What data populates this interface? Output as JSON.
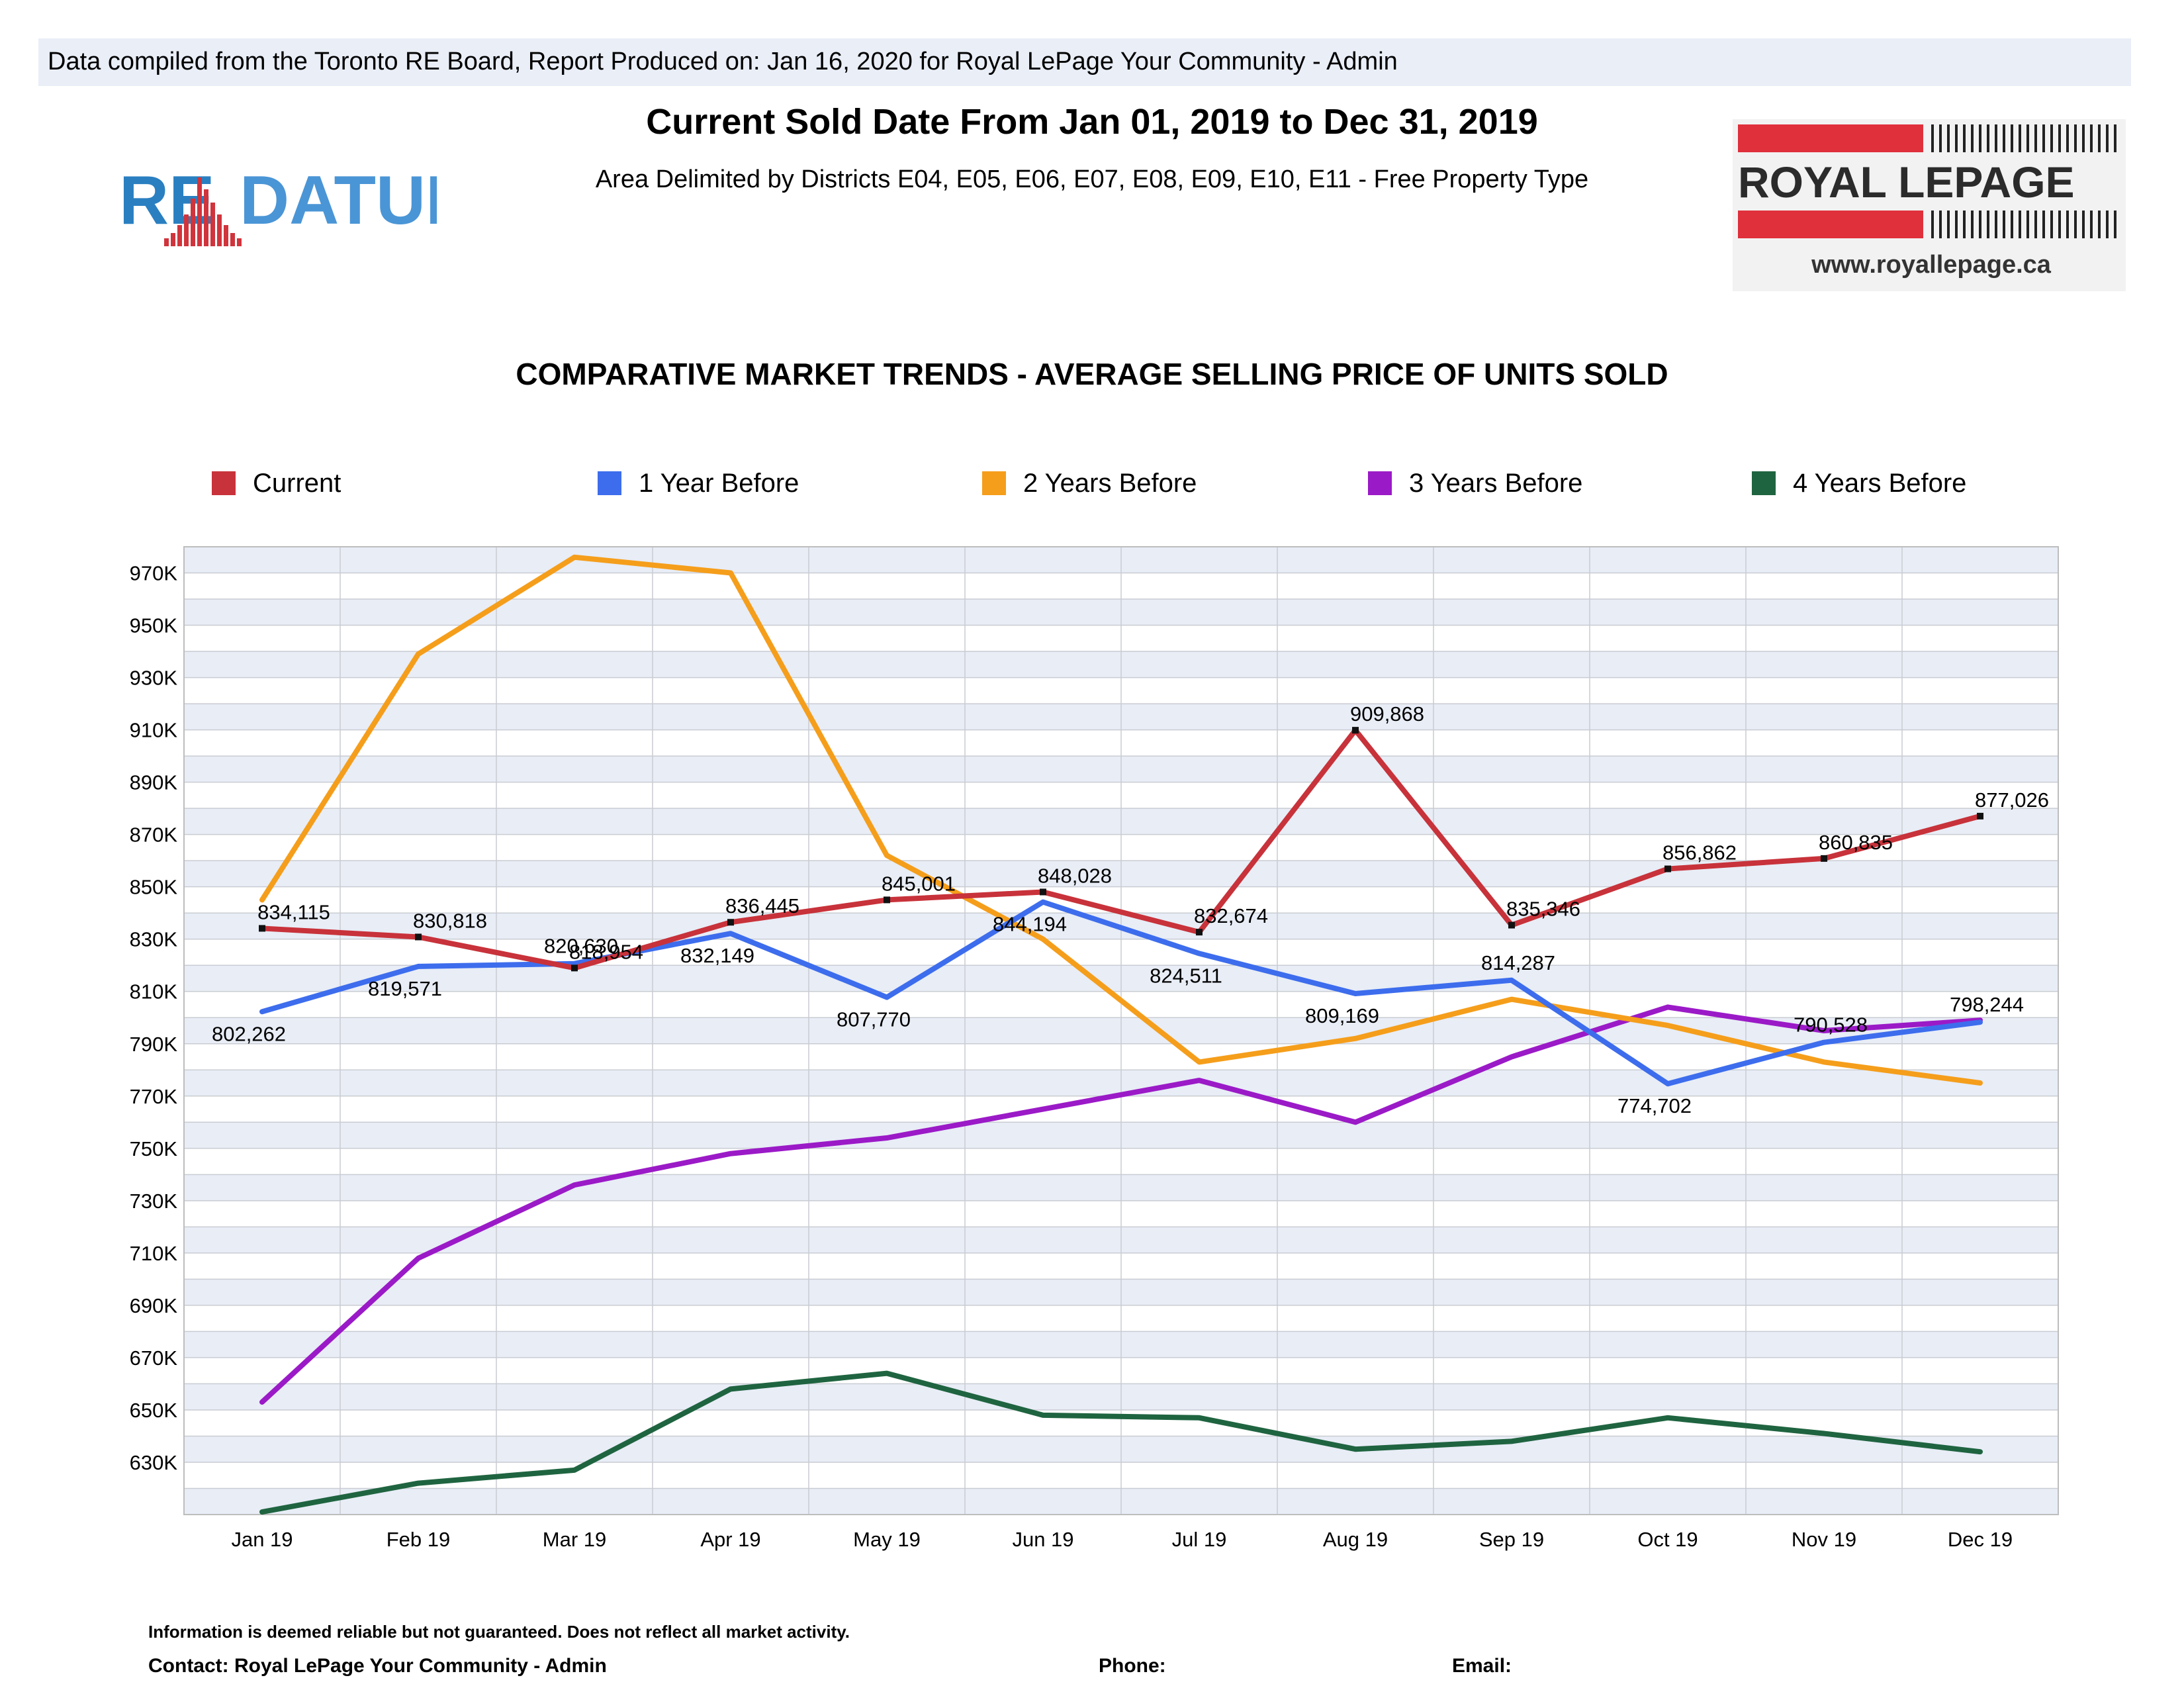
{
  "header": {
    "banner": "Data compiled from the Toronto RE Board, Report Produced on: Jan 16, 2020 for Royal LePage Your Community -  Admin",
    "title": "Current Sold Date From Jan 01, 2019 to Dec 31, 2019",
    "subtitle": "Area Delimited by Districts E04, E05, E06, E07, E08, E09, E10, E11 - Free Property Type"
  },
  "logos": {
    "redatum_left": "RE",
    "redatum_right": "DATUM",
    "royal_name": "ROYAL LEPAGE",
    "royal_url": "www.royallepage.ca"
  },
  "footer": {
    "disclaimer": "Information is deemed reliable but not guaranteed. Does not reflect all market activity.",
    "contact": "Contact: Royal LePage Your Community -  Admin",
    "phone": "Phone:",
    "email": "Email:"
  },
  "chart_data": {
    "type": "line",
    "title": "COMPARATIVE MARKET TRENDS - AVERAGE SELLING PRICE OF UNITS SOLD",
    "xlabel": "",
    "ylabel": "",
    "categories": [
      "Jan 19",
      "Feb 19",
      "Mar 19",
      "Apr 19",
      "May 19",
      "Jun 19",
      "Jul 19",
      "Aug 19",
      "Sep 19",
      "Oct 19",
      "Nov 19",
      "Dec 19"
    ],
    "ylim": [
      610000,
      980000
    ],
    "yticks": [
      630000,
      650000,
      670000,
      690000,
      710000,
      730000,
      750000,
      770000,
      790000,
      810000,
      830000,
      850000,
      870000,
      890000,
      910000,
      930000,
      950000,
      970000
    ],
    "ytick_labels": [
      "630K",
      "650K",
      "670K",
      "690K",
      "710K",
      "730K",
      "750K",
      "770K",
      "790K",
      "810K",
      "830K",
      "850K",
      "870K",
      "890K",
      "910K",
      "930K",
      "950K",
      "970K"
    ],
    "grid": true,
    "legend_position": "top",
    "series": [
      {
        "name": "Current",
        "color": "#c8323a",
        "markers": true,
        "values": [
          834115,
          830818,
          818954,
          836445,
          845001,
          848028,
          832674,
          909868,
          835346,
          856862,
          860835,
          877026
        ],
        "labels": [
          "834,115",
          "830,818",
          "818,954",
          "836,445",
          "845,001",
          "848,028",
          "832,674",
          "909,868",
          "835,346",
          "856,862",
          "860,835",
          "877,026"
        ]
      },
      {
        "name": "1 Year Before",
        "color": "#3d6ded",
        "markers": false,
        "values": [
          802262,
          819571,
          820630,
          832149,
          807770,
          844194,
          824511,
          809169,
          814287,
          774702,
          790528,
          798244
        ],
        "labels": [
          "802,262",
          "819,571",
          "820,630",
          "832,149",
          "807,770",
          "844,194",
          "824,511",
          "809,169",
          "814,287",
          "774,702",
          "790,528",
          "798,244"
        ]
      },
      {
        "name": "2 Years Before",
        "color": "#f59e1b",
        "markers": false,
        "values": [
          845000,
          939000,
          976000,
          970000,
          862000,
          830000,
          783000,
          792000,
          807000,
          797000,
          783000,
          775000
        ]
      },
      {
        "name": "3 Years Before",
        "color": "#9b1ac7",
        "markers": false,
        "values": [
          653000,
          708000,
          736000,
          748000,
          754000,
          765000,
          776000,
          760000,
          785000,
          804000,
          795000,
          799000
        ]
      },
      {
        "name": "4 Years Before",
        "color": "#1f6440",
        "markers": false,
        "values": [
          611000,
          622000,
          627000,
          658000,
          664000,
          648000,
          647000,
          635000,
          638000,
          647000,
          641000,
          634000
        ]
      }
    ]
  }
}
